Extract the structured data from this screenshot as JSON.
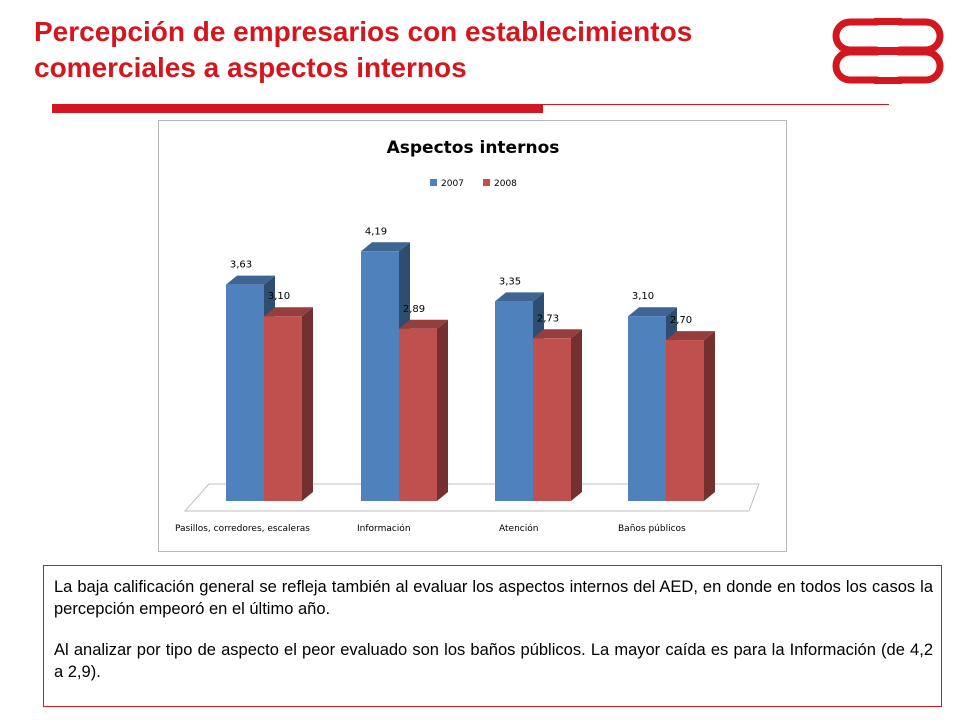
{
  "slide": {
    "title_line1": "Percepción de empresarios con establecimientos",
    "title_line2": "comerciales a aspectos internos",
    "paragraph1": "La baja calificación general se refleja también al evaluar los aspectos internos del AED, en donde en todos los casos la percepción empeoró en el último año.",
    "paragraph2": "Al analizar por tipo de aspecto el peor evaluado son los baños públicos. La mayor caída es para la Información (de 4,2 a 2,9).",
    "accent_color": "#d4161e"
  },
  "chart_data": {
    "type": "bar",
    "title": "Aspectos internos",
    "categories": [
      "Pasillos, corredores, escaleras",
      "Información",
      "Atención",
      "Baños públicos"
    ],
    "series": [
      {
        "name": "2007",
        "values": [
          3.63,
          4.19,
          3.35,
          3.1
        ],
        "labels": [
          "3,63",
          "4,19",
          "3,35",
          "3,10"
        ],
        "color": "#4f81bd"
      },
      {
        "name": "2008",
        "values": [
          3.1,
          2.89,
          2.73,
          2.7
        ],
        "labels": [
          "3,10",
          "2,89",
          "2,73",
          "2,70"
        ],
        "color": "#c0504d"
      }
    ],
    "ylim": [
      0,
      5
    ],
    "legend": "top",
    "grid": false,
    "style": "3d-column"
  }
}
